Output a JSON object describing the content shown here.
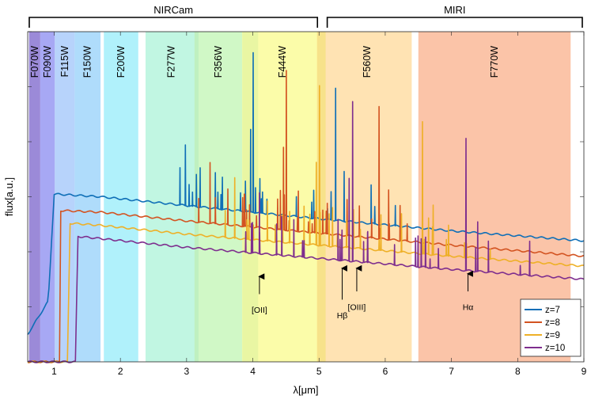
{
  "chart_data": {
    "type": "line",
    "title": "",
    "xlabel": "λ[μm]",
    "ylabel": "flux[a.u.]",
    "xlim": [
      0.6,
      9.0
    ],
    "ylim": [
      0,
      6
    ],
    "xticks": [
      1,
      2,
      3,
      4,
      5,
      6,
      7,
      8,
      9
    ],
    "instrument_groups": [
      {
        "name": "NIRCam",
        "range": [
          0.6,
          5.0
        ]
      },
      {
        "name": "MIRI",
        "range": [
          5.1,
          9.0
        ]
      }
    ],
    "filters": [
      {
        "name": "F070W",
        "range": [
          0.62,
          0.79
        ],
        "color": "#9b8ad8"
      },
      {
        "name": "F090W",
        "range": [
          0.79,
          1.01
        ],
        "color": "#a7a8f4"
      },
      {
        "name": "F115W",
        "range": [
          1.01,
          1.31
        ],
        "color": "#b7d3fb"
      },
      {
        "name": "F150W",
        "range": [
          1.31,
          1.7
        ],
        "color": "#afdcfb"
      },
      {
        "name": "F200W",
        "range": [
          1.75,
          2.27
        ],
        "color": "#b0f1fb"
      },
      {
        "name": "F277W",
        "range": [
          2.38,
          3.16
        ],
        "color": "#c1f6e2"
      },
      {
        "name": "F356W",
        "range": [
          3.12,
          3.84
        ],
        "color": "#d0f8c6"
      },
      {
        "name": "F444W",
        "range": [
          3.84,
          5.05
        ],
        "color": "#fbfca9"
      },
      {
        "name": "F560W",
        "range": [
          5.05,
          6.4
        ],
        "color": "#ffe3b3"
      },
      {
        "name": "F770W",
        "range": [
          6.5,
          8.8
        ],
        "color": "#fbc4a8"
      }
    ],
    "overlaps": [
      {
        "range": [
          3.12,
          3.18
        ],
        "color": "#bff0c0"
      },
      {
        "range": [
          3.84,
          4.08
        ],
        "color": "#e9f6a3"
      },
      {
        "range": [
          4.97,
          5.1
        ],
        "color": "#f7e28a"
      }
    ],
    "series": [
      {
        "name": "z=7",
        "color": "#0f6fb7",
        "z": 7,
        "continuum": [
          [
            0.6,
            0.5
          ],
          [
            0.91,
            1.1
          ],
          [
            1.0,
            3.05
          ],
          [
            1.7,
            3.0
          ],
          [
            3.0,
            2.84
          ],
          [
            5.0,
            2.6
          ],
          [
            7.0,
            2.38
          ],
          [
            9.0,
            2.2
          ]
        ]
      },
      {
        "name": "z=8",
        "color": "#d35321",
        "z": 8,
        "continuum": [
          [
            0.6,
            0.0
          ],
          [
            1.08,
            0.0
          ],
          [
            1.1,
            2.75
          ],
          [
            1.7,
            2.72
          ],
          [
            3.0,
            2.56
          ],
          [
            5.0,
            2.34
          ],
          [
            7.0,
            2.12
          ],
          [
            9.0,
            1.92
          ]
        ]
      },
      {
        "name": "z=9",
        "color": "#eeb027",
        "z": 9,
        "continuum": [
          [
            0.6,
            0.0
          ],
          [
            1.21,
            0.0
          ],
          [
            1.23,
            2.52
          ],
          [
            1.7,
            2.48
          ],
          [
            3.0,
            2.32
          ],
          [
            5.0,
            2.12
          ],
          [
            7.0,
            1.92
          ],
          [
            9.0,
            1.74
          ]
        ]
      },
      {
        "name": "z=10",
        "color": "#7e2e8e",
        "z": 10,
        "continuum": [
          [
            0.6,
            0.0
          ],
          [
            1.33,
            0.0
          ],
          [
            1.35,
            2.28
          ],
          [
            1.7,
            2.24
          ],
          [
            3.0,
            2.08
          ],
          [
            5.0,
            1.88
          ],
          [
            7.0,
            1.68
          ],
          [
            9.0,
            1.5
          ]
        ]
      }
    ],
    "line_groups": [
      {
        "rest": 0.3727,
        "height": 1.1
      },
      {
        "rest": 0.4861,
        "height": 0.55
      },
      {
        "rest": 0.4959,
        "height": 1.5
      },
      {
        "rest": 0.5007,
        "height": 2.9
      },
      {
        "rest": 0.6563,
        "height": 2.4
      },
      {
        "rest": 0.6724,
        "height": 0.9
      },
      {
        "rest": 0.434,
        "height": 0.3
      }
    ],
    "annotations": [
      {
        "text": "[OII]",
        "x": 4.1,
        "y_tip": 1.55,
        "y_text": 0.98
      },
      {
        "text": "Hβ",
        "x": 5.35,
        "y_tip": 1.7,
        "y_text": 0.88
      },
      {
        "text": "[OIII]",
        "x": 5.57,
        "y_tip": 1.7,
        "y_text": 1.03
      },
      {
        "text": "Hα",
        "x": 7.25,
        "y_tip": 1.6,
        "y_text": 1.03
      }
    ],
    "legend_position": "bottom-right"
  }
}
